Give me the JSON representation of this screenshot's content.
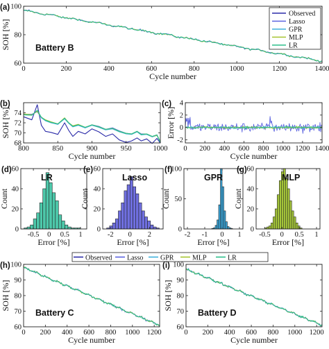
{
  "colors": {
    "observed": "#2a2aa8",
    "lasso": "#5a62e0",
    "gpr": "#3db0dc",
    "mlp": "#a6c42f",
    "lr": "#2bbf8a",
    "hist_lr": "#4dc8aa",
    "hist_lasso": "#6f6fe0",
    "hist_gpr": "#3aa9de",
    "hist_mlp": "#a6c73a"
  },
  "legend": [
    "Observed",
    "Lasso",
    "GPR",
    "MLP",
    "LR"
  ],
  "chart_data": [
    {
      "id": "a",
      "panel_label": "(a)",
      "type": "line",
      "annotation": "Battery B",
      "xlabel": "Cycle number",
      "ylabel": "SOH [%]",
      "xlim": [
        0,
        1400
      ],
      "ylim": [
        60,
        100
      ],
      "xticks": [
        0,
        200,
        400,
        600,
        800,
        1000,
        1200,
        1400
      ],
      "yticks": [
        60,
        80,
        100
      ],
      "trend": {
        "x": [
          0,
          1400
        ],
        "y": [
          97,
          61.5
        ]
      },
      "legend_placement": "top-right"
    },
    {
      "id": "b",
      "panel_label": "(b)",
      "type": "line",
      "xlabel": "Cycle number",
      "ylabel": "SOH [%]",
      "xlim": [
        800,
        1000
      ],
      "ylim": [
        68,
        76
      ],
      "xticks": [
        800,
        850,
        900,
        950,
        1000
      ],
      "yticks": [
        68,
        70,
        72,
        74
      ],
      "series": [
        {
          "key": "observed",
          "x": [
            800,
            812,
            820,
            826,
            832,
            840,
            850,
            860,
            866,
            872,
            880,
            890,
            900,
            910,
            920,
            930,
            940,
            950,
            958,
            966,
            972,
            980,
            988,
            995,
            1000
          ],
          "y": [
            73.2,
            72.6,
            75.6,
            71.5,
            70.3,
            70.1,
            69.7,
            72.0,
            70.5,
            69.3,
            70.3,
            69.8,
            70.8,
            70.2,
            69.3,
            69.8,
            68.6,
            68.1,
            68.4,
            69.0,
            68.4,
            68.8,
            67.9,
            68.9,
            68.0
          ]
        },
        {
          "key": "lasso",
          "x": [
            800,
            812,
            820,
            826,
            832,
            840,
            850,
            860,
            866,
            872,
            880,
            890,
            900,
            910,
            920,
            930,
            940,
            950,
            958,
            966,
            972,
            980,
            988,
            995,
            1000
          ],
          "y": [
            73.7,
            73.7,
            74.2,
            73.0,
            72.5,
            72.1,
            71.7,
            72.9,
            72.0,
            71.3,
            71.6,
            71.0,
            71.6,
            71.3,
            70.7,
            71.0,
            70.4,
            69.9,
            69.8,
            70.3,
            69.8,
            69.8,
            69.3,
            69.6,
            68.2
          ]
        },
        {
          "key": "gpr",
          "x": [
            800,
            812,
            820,
            826,
            832,
            840,
            850,
            860,
            866,
            872,
            880,
            890,
            900,
            910,
            920,
            930,
            940,
            950,
            958,
            966,
            972,
            980,
            988,
            995,
            1000
          ],
          "y": [
            73.6,
            73.5,
            74.4,
            73.0,
            72.4,
            72.0,
            71.7,
            72.8,
            71.9,
            71.2,
            71.5,
            71.0,
            71.5,
            71.1,
            70.6,
            70.8,
            70.2,
            69.8,
            69.7,
            70.2,
            69.6,
            69.7,
            69.2,
            69.5,
            68.1
          ]
        },
        {
          "key": "mlp",
          "x": [
            800,
            812,
            820,
            826,
            832,
            840,
            850,
            860,
            866,
            872,
            880,
            890,
            900,
            910,
            920,
            930,
            940,
            950,
            958,
            966,
            972,
            980,
            988,
            995,
            1000
          ],
          "y": [
            73.8,
            73.6,
            74.3,
            73.1,
            72.6,
            72.2,
            71.8,
            73.0,
            72.0,
            71.4,
            71.7,
            71.1,
            71.6,
            71.2,
            70.7,
            70.9,
            70.3,
            69.9,
            69.8,
            70.3,
            69.7,
            69.8,
            69.3,
            69.5,
            68.3
          ]
        },
        {
          "key": "lr",
          "x": [
            800,
            812,
            820,
            826,
            832,
            840,
            850,
            860,
            866,
            872,
            880,
            890,
            900,
            910,
            920,
            930,
            940,
            950,
            958,
            966,
            972,
            980,
            988,
            995,
            1000
          ],
          "y": [
            73.6,
            73.5,
            74.5,
            73.1,
            72.5,
            72.1,
            71.8,
            72.9,
            72.0,
            71.3,
            71.6,
            71.1,
            71.6,
            71.2,
            70.7,
            70.9,
            70.3,
            69.9,
            69.8,
            70.3,
            69.7,
            69.8,
            69.3,
            69.6,
            68.2
          ]
        }
      ]
    },
    {
      "id": "c",
      "panel_label": "(c)",
      "type": "line",
      "xlabel": "Cycle number",
      "ylabel": "Error [%]",
      "xlim": [
        0,
        1400
      ],
      "ylim": [
        -2.5,
        4
      ],
      "xticks": [
        0,
        200,
        400,
        600,
        800,
        1000,
        1200,
        1400
      ],
      "yticks": [
        -2,
        0,
        2,
        4
      ]
    },
    {
      "id": "d",
      "panel_label": "(d)",
      "type": "bar",
      "annotation": "LR",
      "xlabel": "Error [%]",
      "ylabel": "Count",
      "xlim": [
        -0.9,
        1.2
      ],
      "ylim": [
        0,
        60
      ],
      "xticks": [
        -0.5,
        0,
        0.5,
        1
      ],
      "xticklabels": [
        "-0.5",
        "0",
        "0.5",
        "1"
      ],
      "yticks": [
        0,
        20,
        40,
        60
      ],
      "bin_start": -0.8,
      "bin_width": 0.1,
      "values": [
        1,
        2,
        4,
        10,
        16,
        26,
        40,
        56,
        46,
        36,
        28,
        14,
        8,
        4,
        2,
        1,
        1,
        1
      ]
    },
    {
      "id": "e",
      "panel_label": "(e)",
      "type": "bar",
      "annotation": "Lasso",
      "xlabel": "Error [%]",
      "ylabel": "Count",
      "xlim": [
        -2.8,
        3.4
      ],
      "ylim": [
        0,
        60
      ],
      "xticks": [
        -2,
        0,
        2
      ],
      "xticklabels": [
        "-2",
        "0",
        "2"
      ],
      "yticks": [
        0,
        20,
        40,
        60
      ],
      "bin_start": -2.4,
      "bin_width": 0.3,
      "values": [
        1,
        3,
        6,
        10,
        18,
        26,
        38,
        44,
        52,
        42,
        35,
        26,
        18,
        12,
        8,
        4,
        2,
        1
      ]
    },
    {
      "id": "f",
      "panel_label": "(f)",
      "type": "bar",
      "annotation": "GPR",
      "xlabel": "Error [%]",
      "ylabel": "Count",
      "xlim": [
        -2.2,
        1.2
      ],
      "ylim": [
        0,
        100
      ],
      "xticks": [
        -2,
        -1,
        0,
        1
      ],
      "xticklabels": [
        "-2",
        "-1",
        "0",
        "1"
      ],
      "yticks": [
        0,
        50,
        100
      ],
      "bin_start": -0.6,
      "bin_width": 0.1,
      "values": [
        1,
        2,
        6,
        15,
        40,
        100,
        70,
        30,
        12,
        4,
        2,
        1
      ]
    },
    {
      "id": "g",
      "panel_label": "(g)",
      "type": "bar",
      "annotation": "MLP",
      "xlabel": "Error [%]",
      "ylabel": "Count",
      "xlim": [
        -0.75,
        1.1
      ],
      "ylim": [
        0,
        60
      ],
      "xticks": [
        -0.5,
        0,
        0.5,
        1
      ],
      "xticklabels": [
        "-0.5",
        "0",
        "0.5",
        "1"
      ],
      "yticks": [
        0,
        20,
        40,
        60
      ],
      "bin_start": -0.5,
      "bin_width": 0.06,
      "values": [
        1,
        2,
        3,
        6,
        12,
        20,
        34,
        48,
        57,
        60,
        50,
        40,
        28,
        18,
        12,
        6,
        3,
        1
      ]
    },
    {
      "id": "h",
      "panel_label": "(h)",
      "type": "line",
      "annotation": "Battery C",
      "xlabel": "Cycle number",
      "ylabel": "SOH [%]",
      "xlim": [
        0,
        1250
      ],
      "ylim": [
        60,
        100
      ],
      "xticks": [
        0,
        200,
        400,
        600,
        800,
        1000,
        1200
      ],
      "yticks": [
        60,
        70,
        80,
        90,
        100
      ],
      "trend": {
        "x": [
          0,
          1250
        ],
        "y": [
          98,
          61
        ]
      }
    },
    {
      "id": "i",
      "panel_label": "(i)",
      "type": "line",
      "annotation": "Battery D",
      "xlabel": "Cycle number",
      "ylabel": "SOH [%]",
      "xlim": [
        0,
        1250
      ],
      "ylim": [
        60,
        100
      ],
      "xticks": [
        0,
        200,
        400,
        600,
        800,
        1000,
        1200
      ],
      "yticks": [
        60,
        70,
        80,
        90,
        100
      ],
      "trend": {
        "x": [
          0,
          1250
        ],
        "y": [
          97,
          61
        ]
      }
    }
  ]
}
